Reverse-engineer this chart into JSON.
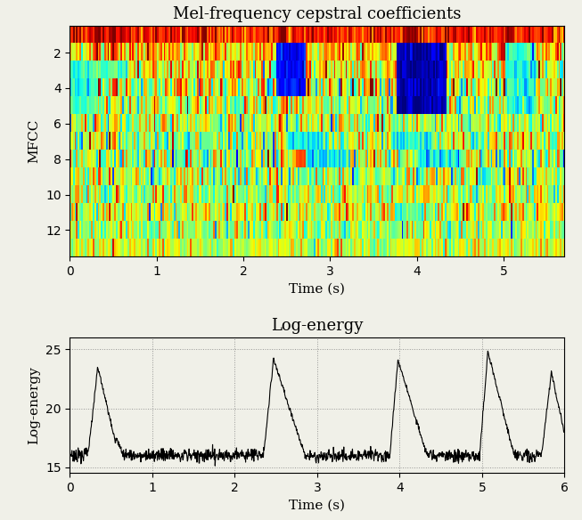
{
  "title_mfcc": "Mel-frequency cepstral coefficients",
  "title_energy": "Log-energy",
  "xlabel": "Time (s)",
  "ylabel_mfcc": "MFCC",
  "ylabel_energy": "Log-energy",
  "mfcc_yticks": [
    2,
    4,
    6,
    8,
    10,
    12
  ],
  "mfcc_xticks": [
    0,
    1,
    2,
    3,
    4,
    5
  ],
  "mfcc_xlim": [
    0,
    5.7
  ],
  "energy_yticks": [
    15,
    20,
    25
  ],
  "energy_xticks": [
    0,
    1,
    2,
    3,
    4,
    5,
    6
  ],
  "energy_xlim": [
    0,
    6
  ],
  "energy_ylim": [
    14.5,
    26
  ],
  "bg_color": "#f0f0e8",
  "line_color": "#000000",
  "colormap": "jet",
  "fig_width": 6.53,
  "fig_height": 5.84,
  "dpi": 100
}
